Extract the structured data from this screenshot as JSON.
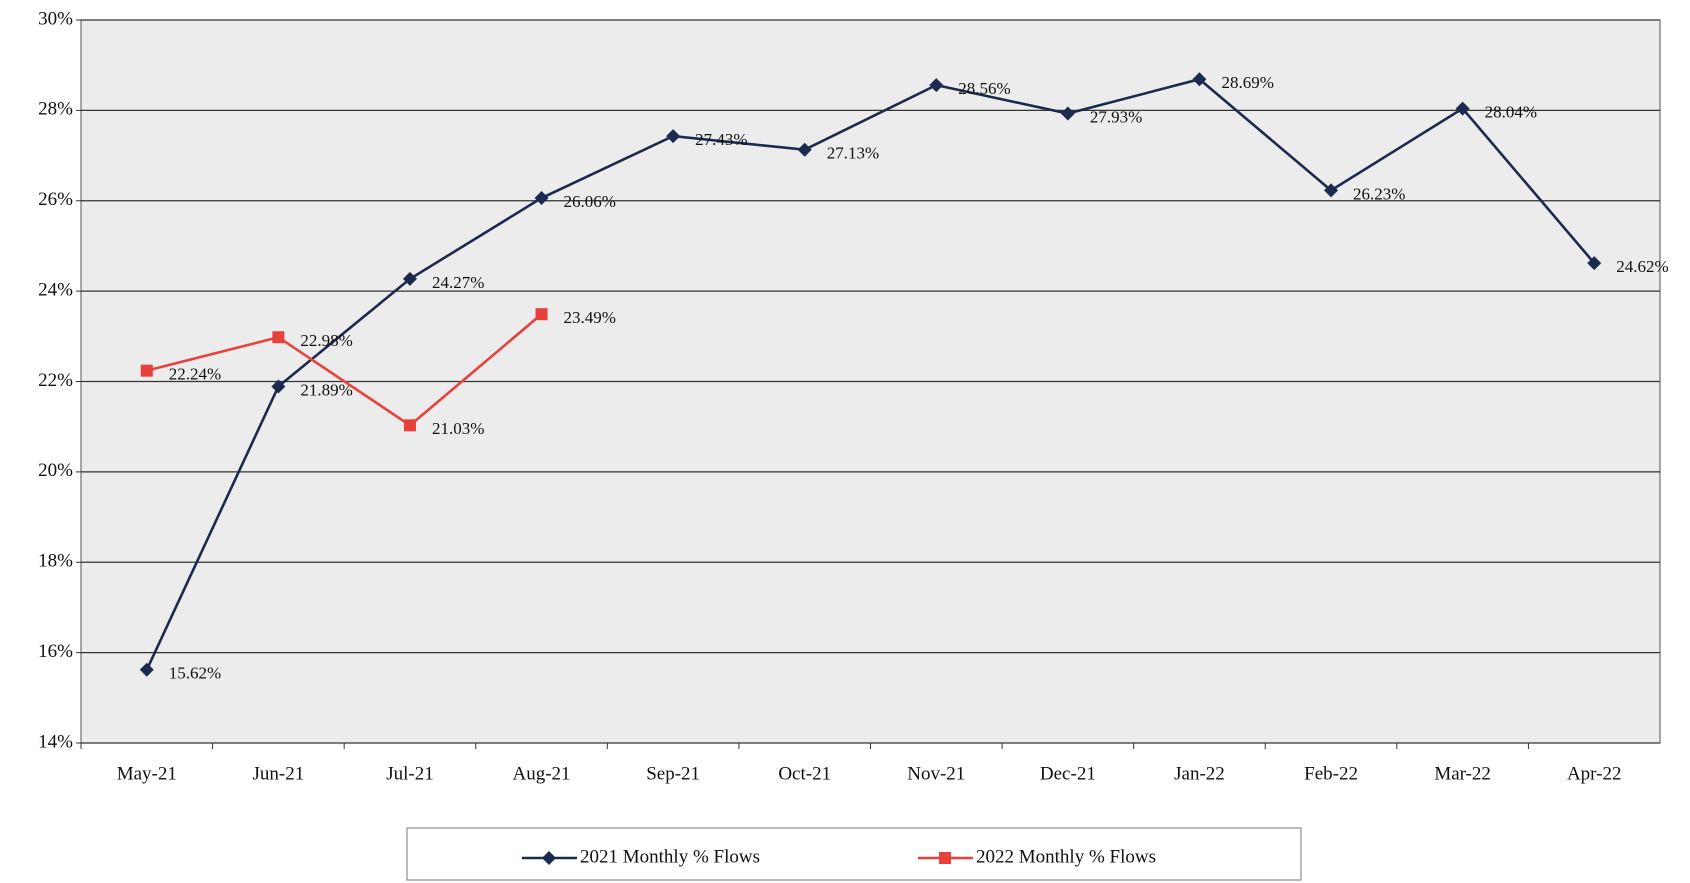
{
  "chart_data": {
    "type": "line",
    "categories": [
      "May-21",
      "Jun-21",
      "Jul-21",
      "Aug-21",
      "Sep-21",
      "Oct-21",
      "Nov-21",
      "Dec-21",
      "Jan-22",
      "Feb-22",
      "Mar-22",
      "Apr-22"
    ],
    "series": [
      {
        "name": "2021 Monthly % Flows",
        "color": "#1b2a4e",
        "marker": "diamond",
        "values": [
          15.62,
          21.89,
          24.27,
          26.06,
          27.43,
          27.13,
          28.56,
          27.93,
          28.69,
          26.23,
          28.04,
          24.62
        ],
        "value_labels": [
          "15.62%",
          "21.89%",
          "24.27%",
          "26.06%",
          "27.43%",
          "27.13%",
          "28.56%",
          "27.93%",
          "28.69%",
          "26.23%",
          "28.04%",
          "24.62%"
        ]
      },
      {
        "name": "2022 Monthly % Flows",
        "color": "#e8413c",
        "marker": "square",
        "values": [
          22.24,
          22.98,
          21.03,
          23.49,
          null,
          null,
          null,
          null,
          null,
          null,
          null,
          null
        ],
        "value_labels": [
          "22.24%",
          "22.98%",
          "21.03%",
          "23.49%",
          null,
          null,
          null,
          null,
          null,
          null,
          null,
          null
        ]
      }
    ],
    "ylim": [
      14,
      30
    ],
    "yticks": [
      {
        "value": 14,
        "label": "14%"
      },
      {
        "value": 16,
        "label": "16%"
      },
      {
        "value": 18,
        "label": "18%"
      },
      {
        "value": 20,
        "label": "20%"
      },
      {
        "value": 22,
        "label": "22%"
      },
      {
        "value": 24,
        "label": "24%"
      },
      {
        "value": 26,
        "label": "26%"
      },
      {
        "value": 28,
        "label": "28%"
      },
      {
        "value": 30,
        "label": "30%"
      }
    ],
    "grid": true
  }
}
